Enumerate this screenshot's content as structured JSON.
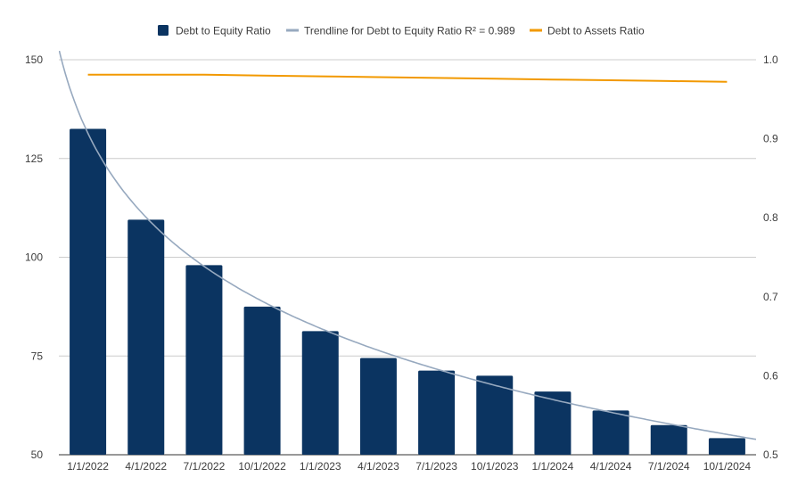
{
  "chart_data": {
    "type": "bar",
    "categories": [
      "1/1/2022",
      "4/1/2022",
      "7/1/2022",
      "10/1/2022",
      "1/1/2023",
      "4/1/2023",
      "7/1/2023",
      "10/1/2023",
      "1/1/2024",
      "4/1/2024",
      "7/1/2024",
      "10/1/2024"
    ],
    "series": [
      {
        "name": "Debt to Equity Ratio",
        "type": "bar",
        "axis": "left",
        "color": "#0b3461",
        "values": [
          132.5,
          109.5,
          98,
          87.5,
          81.3,
          74.5,
          71.3,
          70,
          66,
          61.2,
          57.5,
          54.2
        ]
      },
      {
        "name": "Debt to Assets Ratio",
        "type": "line",
        "axis": "right",
        "color": "#f29900",
        "values": [
          0.981,
          0.981,
          0.981,
          0.98,
          0.979,
          0.978,
          0.977,
          0.976,
          0.975,
          0.974,
          0.973,
          0.972
        ]
      }
    ],
    "trendline": {
      "name": "Trendline for Debt to Equity Ratio R² = 0.989",
      "color": "#97a9bf",
      "type": "logarithmic",
      "applies_to": "Debt to Equity Ratio"
    },
    "y_left": {
      "min": 50,
      "max": 150,
      "ticks": [
        "50",
        "75",
        "100",
        "125",
        "150"
      ]
    },
    "y_right": {
      "min": 0.5,
      "max": 1.0,
      "ticks": [
        "0.5",
        "0.6",
        "0.7",
        "0.8",
        "0.9",
        "1.0"
      ]
    },
    "grid": true,
    "legend_position": "top"
  }
}
